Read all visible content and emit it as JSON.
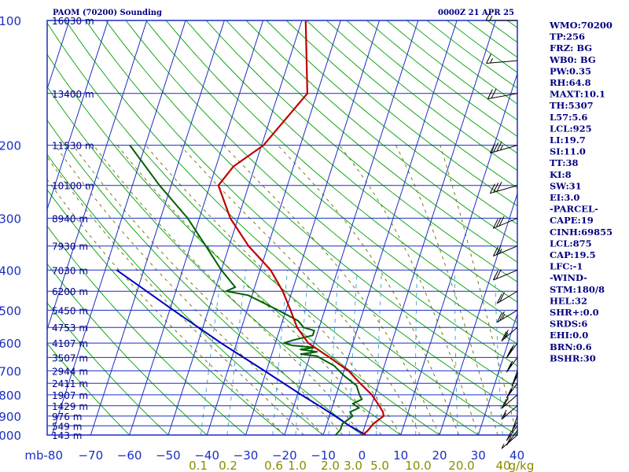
{
  "header": {
    "title": "PAOM (70200) Sounding",
    "datetime": "0000Z 21 APR 25"
  },
  "indices": [
    "WMO:70200",
    "TP:256",
    "FRZ: BG",
    "WB0: BG",
    "PW:0.35",
    "RH:64.8",
    "MAXT:10.1",
    "TH:5307",
    "L57:5.6",
    "LCL:925",
    "LI:19.7",
    "SI:11.0",
    "TT:38",
    "KI:8",
    "SW:31",
    "EI:3.0",
    "-PARCEL-",
    "CAPE:19",
    "CINH:69855",
    "LCL:875",
    "CAP:19.5",
    "LFC:-1",
    "-WIND-",
    "STM:180/8",
    "HEL:32",
    "SHR+:0.0",
    "SRDS:6",
    "EHI:0.0",
    "BRN:0.6",
    "BSHR:30"
  ],
  "colors": {
    "isobar": "#1a2fc4",
    "isotherm": "#1a2fc4",
    "dry_adiabat": "#00a000",
    "moist_adiabat": "#6b6b00",
    "mixing_ratio": "#3aa0d0",
    "temperature": "#c00000",
    "dewpoint": "#006000",
    "parcel": "#0000c0",
    "wind_barb": "#000000"
  },
  "chart_data": {
    "type": "skew-t",
    "title": "PAOM (70200) Sounding",
    "xunit_label": "mb",
    "mixing_ratio_unit": "g/kg",
    "pressure_levels": [
      100,
      200,
      300,
      400,
      500,
      600,
      700,
      800,
      900,
      1000
    ],
    "pressure_labels": [
      "100",
      "200",
      "300",
      "400",
      "500",
      "600",
      "700",
      "800",
      "900",
      "1000"
    ],
    "temperature_ticks": [
      -80,
      -70,
      -60,
      -50,
      -40,
      -30,
      -20,
      -10,
      0,
      10,
      20,
      30,
      40
    ],
    "temperature_labels": [
      "mb-80",
      "−70",
      "−60",
      "−50",
      "−40",
      "−30",
      "−20",
      "−10",
      "0",
      "10",
      "20",
      "30",
      "40"
    ],
    "mixing_ratio_labels": [
      "0.1",
      "0.2",
      "0.6",
      "1.0",
      "2.0",
      "3.0",
      "5.0",
      "10.0",
      "20.0",
      "40",
      "g/kg"
    ],
    "height_labels": [
      {
        "p": 100,
        "label": "16030 m"
      },
      {
        "p": 150,
        "label": "13400 m"
      },
      {
        "p": 200,
        "label": "11530 m"
      },
      {
        "p": 250,
        "label": "10100 m"
      },
      {
        "p": 300,
        "label": "8940 m"
      },
      {
        "p": 350,
        "label": "7930 m"
      },
      {
        "p": 400,
        "label": "7030 m"
      },
      {
        "p": 450,
        "label": "6200 m"
      },
      {
        "p": 500,
        "label": "5450 m"
      },
      {
        "p": 550,
        "label": "4753 m"
      },
      {
        "p": 600,
        "label": "4107 m"
      },
      {
        "p": 650,
        "label": "3507 m"
      },
      {
        "p": 700,
        "label": "2944 m"
      },
      {
        "p": 750,
        "label": "2411 m"
      },
      {
        "p": 800,
        "label": "1907 m"
      },
      {
        "p": 850,
        "label": "1429 m"
      },
      {
        "p": 900,
        "label": "976 m"
      },
      {
        "p": 950,
        "label": "549 m"
      },
      {
        "p": 1000,
        "label": "143 m"
      }
    ],
    "temperature_profile": [
      [
        1000,
        0.0
      ],
      [
        980,
        1.0
      ],
      [
        960,
        1.5
      ],
      [
        940,
        2.0
      ],
      [
        920,
        3.0
      ],
      [
        900,
        4.0
      ],
      [
        880,
        3.5
      ],
      [
        850,
        2.0
      ],
      [
        800,
        -0.8
      ],
      [
        750,
        -4.8
      ],
      [
        700,
        -8.8
      ],
      [
        650,
        -14.8
      ],
      [
        600,
        -21.5
      ],
      [
        550,
        -25.7
      ],
      [
        500,
        -28.8
      ],
      [
        450,
        -32.4
      ],
      [
        400,
        -37.3
      ],
      [
        350,
        -45.0
      ],
      [
        300,
        -52.0
      ],
      [
        250,
        -57.8
      ],
      [
        225,
        -55.5
      ],
      [
        200,
        -49.5
      ],
      [
        150,
        -42.5
      ],
      [
        100,
        -49.0
      ]
    ],
    "dewpoint_profile": [
      [
        1000,
        -6.8
      ],
      [
        970,
        -6.0
      ],
      [
        940,
        -6.0
      ],
      [
        900,
        -4.0
      ],
      [
        880,
        -5.0
      ],
      [
        860,
        -3.0
      ],
      [
        840,
        -5.0
      ],
      [
        820,
        -3.0
      ],
      [
        800,
        -4.0
      ],
      [
        760,
        -5.5
      ],
      [
        720,
        -9.5
      ],
      [
        680,
        -13.0
      ],
      [
        660,
        -16.0
      ],
      [
        645,
        -18.2
      ],
      [
        638,
        -22.5
      ],
      [
        630,
        -18.5
      ],
      [
        622,
        -23.0
      ],
      [
        615,
        -19.5
      ],
      [
        608,
        -25.5
      ],
      [
        600,
        -27.8
      ],
      [
        590,
        -25.5
      ],
      [
        575,
        -21.0
      ],
      [
        560,
        -21.0
      ],
      [
        550,
        -24.0
      ],
      [
        530,
        -26.0
      ],
      [
        500,
        -32.0
      ],
      [
        460,
        -41.0
      ],
      [
        450,
        -47.0
      ],
      [
        440,
        -45.0
      ],
      [
        400,
        -50.0
      ],
      [
        350,
        -56.0
      ],
      [
        300,
        -63.0
      ],
      [
        250,
        -73.0
      ],
      [
        200,
        -84.0
      ]
    ],
    "parcel_profile": [
      [
        1000,
        1.0
      ],
      [
        950,
        -4.0
      ],
      [
        900,
        -8.5
      ],
      [
        850,
        -13.5
      ],
      [
        800,
        -19.0
      ],
      [
        700,
        -30.5
      ],
      [
        600,
        -44.0
      ],
      [
        500,
        -59.0
      ],
      [
        400,
        -77.0
      ]
    ],
    "wind_profile": [
      {
        "p": 1000,
        "dir": 210,
        "spd": 5
      },
      {
        "p": 975,
        "dir": 200,
        "spd": 10
      },
      {
        "p": 950,
        "dir": 200,
        "spd": 10
      },
      {
        "p": 900,
        "dir": 190,
        "spd": 15
      },
      {
        "p": 850,
        "dir": 210,
        "spd": 15
      },
      {
        "p": 800,
        "dir": 210,
        "spd": 20
      },
      {
        "p": 750,
        "dir": 200,
        "spd": 25
      },
      {
        "p": 700,
        "dir": 190,
        "spd": 30
      },
      {
        "p": 650,
        "dir": 200,
        "spd": 25
      },
      {
        "p": 600,
        "dir": 200,
        "spd": 30
      },
      {
        "p": 550,
        "dir": 210,
        "spd": 25
      },
      {
        "p": 500,
        "dir": 220,
        "spd": 25
      },
      {
        "p": 450,
        "dir": 220,
        "spd": 20
      },
      {
        "p": 400,
        "dir": 230,
        "spd": 20
      },
      {
        "p": 350,
        "dir": 230,
        "spd": 25
      },
      {
        "p": 300,
        "dir": 230,
        "spd": 30
      },
      {
        "p": 250,
        "dir": 240,
        "spd": 30
      },
      {
        "p": 200,
        "dir": 240,
        "spd": 35
      },
      {
        "p": 150,
        "dir": 250,
        "spd": 20
      },
      {
        "p": 125,
        "dir": 260,
        "spd": 15
      },
      {
        "p": 100,
        "dir": 270,
        "spd": 15
      }
    ]
  }
}
